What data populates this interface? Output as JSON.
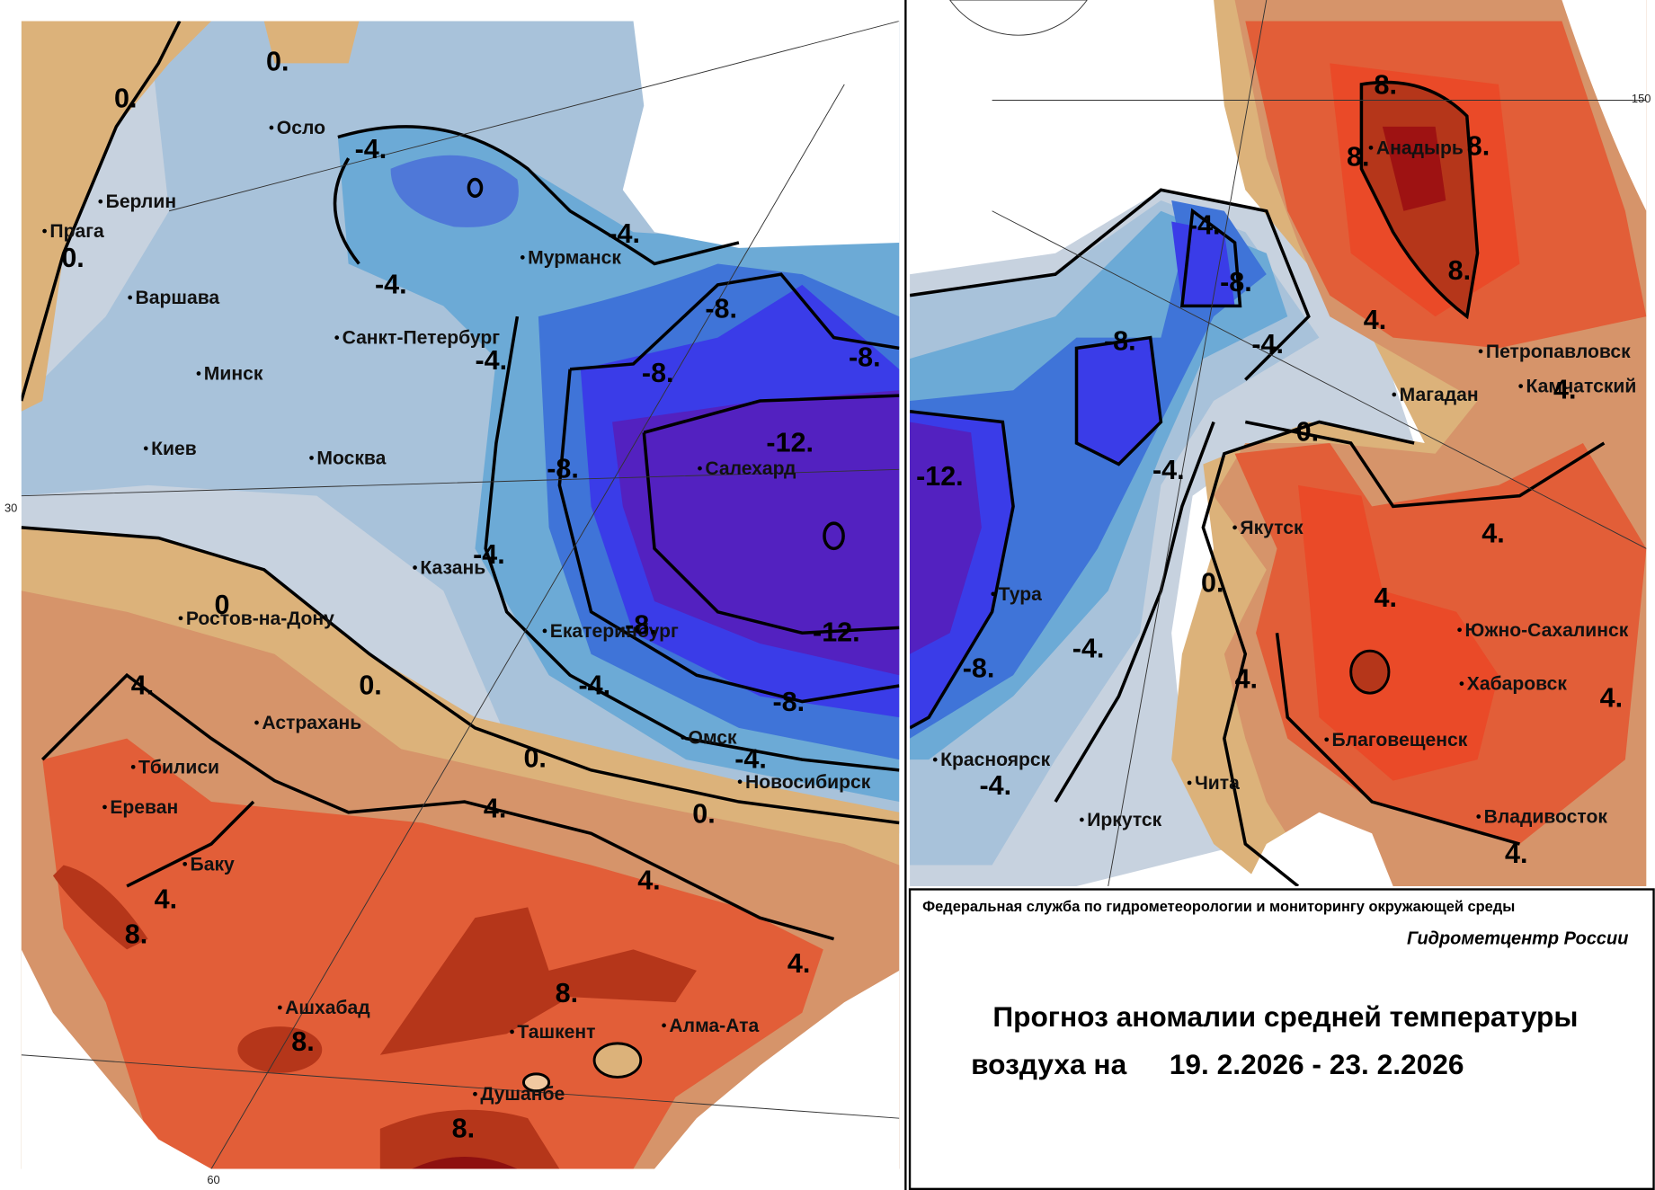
{
  "left_map": {
    "cities": [
      "Осло",
      "Берлин",
      "Прага",
      "Варшава",
      "Минск",
      "Киев",
      "Москва",
      "Санкт-Петербург",
      "Мурманск",
      "Казань",
      "Ростов-на-Дону",
      "Астрахань",
      "Тбилиси",
      "Ереван",
      "Баку",
      "Ашхабад",
      "Ташкент",
      "Алма-Ата",
      "Душанбе",
      "Екатеринбург",
      "Салехард",
      "Омск",
      "Новосибирск"
    ],
    "isolines": [
      "0.",
      "0.",
      "0.",
      "0",
      "0.",
      "0.",
      "0.",
      "-4.",
      "-4.",
      "-4.",
      "-4.",
      "-4.",
      "-4.",
      "-4.",
      "-8.",
      "-8.",
      "-8.",
      "-8.",
      "-8.",
      "-8.",
      "-12.",
      "-12.",
      "4.",
      "4.",
      "4.",
      "4.",
      "4.",
      "8.",
      "8.",
      "8.",
      "8."
    ]
  },
  "right_map": {
    "cities": [
      "Анадырь",
      "Петропавловск",
      "Камчатский",
      "Магадан",
      "Якутск",
      "Тура",
      "Южно-Сахалинск",
      "Хабаровск",
      "Благовещенск",
      "Красноярск",
      "Чита",
      "Иркутск",
      "Владивосток"
    ],
    "isolines": [
      "-4.",
      "-4.",
      "-4.",
      "-4.",
      "-4.",
      "-8.",
      "-8.",
      "-8.",
      "-12.",
      "0.",
      "0.",
      "4.",
      "4.",
      "4.",
      "4.",
      "4.",
      "4.",
      "4.",
      "8.",
      "8.",
      "8.",
      "8."
    ]
  },
  "grid_labels": [
    "30",
    "60",
    "150"
  ],
  "footer": {
    "agency": "Федеральная служба по гидрометеорологии и мониторингу окружающей среды",
    "center": "Гидрометцентр России",
    "title": "Прогноз аномалии средней температуры",
    "title_prefix": "воздуха на",
    "dates": "19. 2.2026 - 23. 2.2026"
  }
}
